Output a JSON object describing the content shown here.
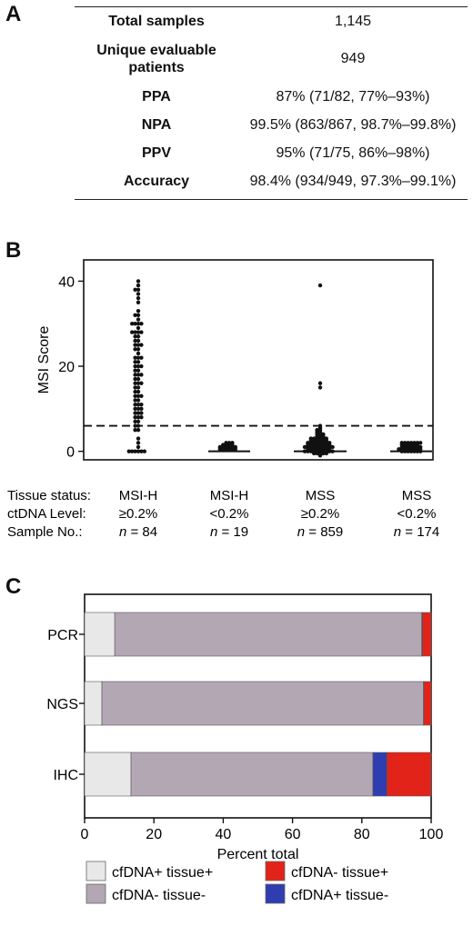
{
  "panels": {
    "a": {
      "label": "A"
    },
    "b": {
      "label": "B"
    },
    "c": {
      "label": "C"
    }
  },
  "table": {
    "rows": [
      {
        "key": "Total samples",
        "value": "1,145"
      },
      {
        "key": "Unique evaluable patients",
        "value": "949"
      },
      {
        "key": "PPA",
        "value": "87% (71/82, 77%–93%)"
      },
      {
        "key": "NPA",
        "value": "99.5% (863/867, 98.7%–99.8%)"
      },
      {
        "key": "PPV",
        "value": "95% (71/75, 86%–98%)"
      },
      {
        "key": "Accuracy",
        "value": "98.4% (934/949, 97.3%–99.1%)"
      }
    ]
  },
  "chart_data": [
    {
      "type": "scatter",
      "ylabel": "MSI Score",
      "ylim": [
        -2,
        45
      ],
      "yticks": [
        "0",
        "20",
        "40"
      ],
      "threshold": 6,
      "threshold_style": "dashed",
      "row_labels": [
        "Tissue status:",
        "ctDNA Level:",
        "Sample No.:"
      ],
      "groups": [
        {
          "tissue": "MSI-H",
          "level": "≥0.2%",
          "n_prefix": "n",
          "n_value": "= 84",
          "values": [
            40,
            39,
            38,
            38,
            37,
            36,
            35,
            33,
            32,
            32,
            31,
            30,
            30,
            30,
            30,
            29,
            28,
            28,
            28,
            28,
            27,
            27,
            26,
            26,
            25,
            25,
            25,
            24,
            24,
            23,
            22,
            22,
            22,
            21,
            21,
            20,
            20,
            20,
            19,
            19,
            18,
            18,
            18,
            17,
            17,
            16,
            16,
            16,
            15,
            15,
            14,
            14,
            13,
            13,
            13,
            12,
            12,
            11,
            11,
            11,
            10,
            10,
            10,
            9,
            9,
            9,
            8,
            8,
            8,
            7,
            7,
            6,
            6,
            5,
            5,
            3,
            2,
            1,
            0,
            0,
            0,
            0,
            0,
            0
          ]
        },
        {
          "tissue": "MSI-H",
          "level": "<0.2%",
          "n_prefix": "n",
          "n_value": "= 19",
          "values": [
            2,
            2,
            2,
            1.5,
            1.5,
            1.5,
            1.5,
            1,
            1,
            1,
            1,
            1,
            1,
            0.5,
            0.5,
            0.5,
            0.5,
            0.5,
            0.5
          ]
        },
        {
          "tissue": "MSS",
          "level": "≥0.2%",
          "n_prefix": "n",
          "n_value": "= 859",
          "values": [
            39,
            16,
            15,
            6,
            5.5,
            5,
            5,
            4.5,
            4.5,
            4,
            4,
            4,
            3.5,
            3.5,
            3.5,
            3,
            3,
            3,
            3,
            3,
            3,
            2.5,
            2.5,
            2.5,
            2.5,
            2.5,
            2.5,
            2,
            2,
            2,
            2,
            2,
            2,
            2,
            2,
            1.5,
            1.5,
            1.5,
            1.5,
            1.5,
            1.5,
            1.5,
            1.5,
            1,
            1,
            1,
            1,
            1,
            1,
            1,
            1,
            1,
            1,
            0.5,
            0.5,
            0.5,
            0.5,
            0.5,
            0.5,
            0.5,
            0.5,
            0,
            0,
            0,
            0,
            0,
            0,
            0,
            0,
            0,
            0,
            -0.5,
            -0.5,
            -0.5,
            -0.5,
            -0.5,
            -1
          ]
        },
        {
          "tissue": "MSS",
          "level": "<0.2%",
          "n_prefix": "n",
          "n_value": "= 174",
          "values": [
            2,
            2,
            2,
            2,
            2,
            2,
            2,
            1.5,
            1.5,
            1.5,
            1.5,
            1.5,
            1.5,
            1,
            1,
            1,
            1,
            1,
            1,
            1,
            0.5,
            0.5,
            0.5,
            0.5,
            0.5,
            0.5,
            0.5,
            0.5,
            0,
            0,
            0,
            0,
            0,
            0,
            0
          ]
        }
      ]
    },
    {
      "type": "bar",
      "orientation": "horizontal",
      "stacked": true,
      "xlabel": "Percent total",
      "xlim": [
        0,
        100
      ],
      "xticks": [
        "0",
        "20",
        "40",
        "60",
        "80",
        "100"
      ],
      "categories": [
        "PCR",
        "NGS",
        "IHC"
      ],
      "series": [
        {
          "name": "cfDNA+ tissue+",
          "color": "#e8e8e8",
          "values": [
            8.7,
            5.0,
            13.4
          ]
        },
        {
          "name": "cfDNA- tissue-",
          "color": "#b3a7b4",
          "values": [
            88.6,
            92.8,
            69.8
          ]
        },
        {
          "name": "cfDNA+ tissue-",
          "color": "#2e3db0",
          "values": [
            0.2,
            0.1,
            4.0
          ]
        },
        {
          "name": "cfDNA- tissue+",
          "color": "#e2231a",
          "values": [
            2.5,
            2.1,
            12.8
          ]
        }
      ],
      "legend": [
        {
          "name": "cfDNA+ tissue+",
          "color": "#e8e8e8"
        },
        {
          "name": "cfDNA- tissue+",
          "color": "#e2231a"
        },
        {
          "name": "cfDNA- tissue-",
          "color": "#b3a7b4"
        },
        {
          "name": "cfDNA+ tissue-",
          "color": "#2e3db0"
        }
      ],
      "legend_position": "bottom"
    }
  ]
}
